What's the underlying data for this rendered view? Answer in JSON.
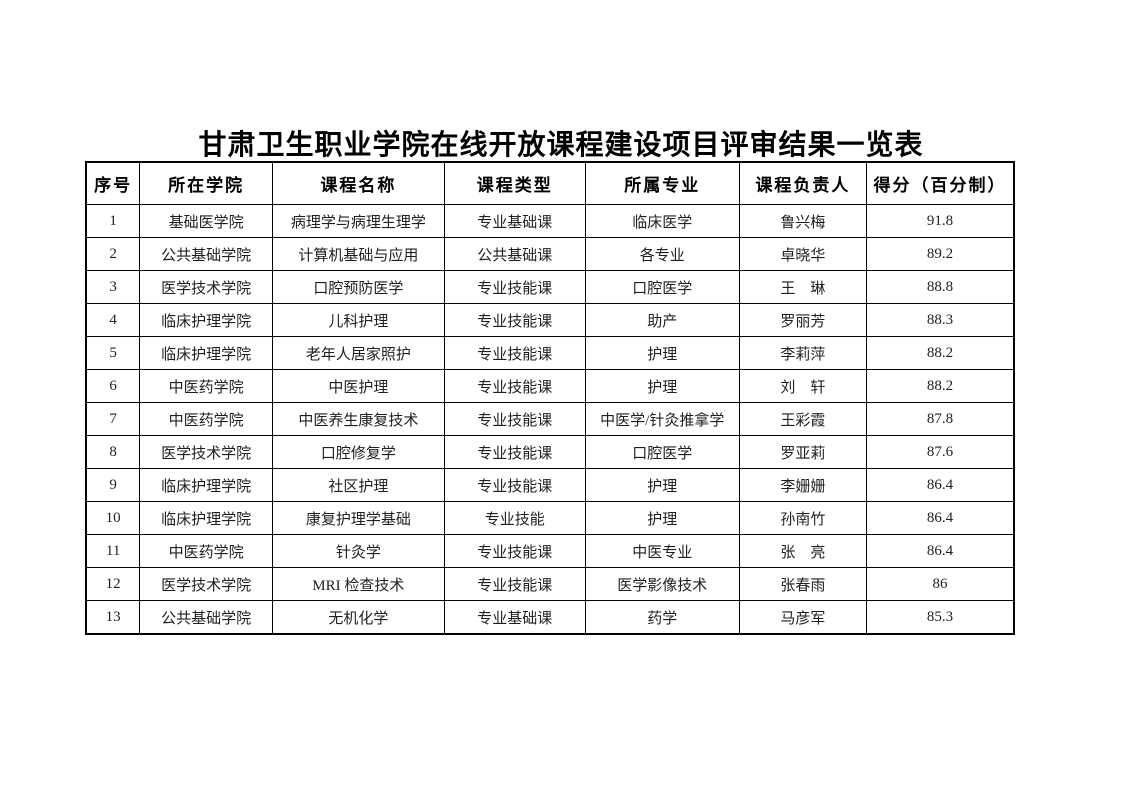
{
  "title": "甘肃卫生职业学院在线开放课程建设项目评审结果一览表",
  "table": {
    "headers": [
      "序号",
      "所在学院",
      "课程名称",
      "课程类型",
      "所属专业",
      "课程负责人",
      "得分（百分制）"
    ],
    "rows": [
      [
        "1",
        "基础医学院",
        "病理学与病理生理学",
        "专业基础课",
        "临床医学",
        "鲁兴梅",
        "91.8"
      ],
      [
        "2",
        "公共基础学院",
        "计算机基础与应用",
        "公共基础课",
        "各专业",
        "卓晓华",
        "89.2"
      ],
      [
        "3",
        "医学技术学院",
        "口腔预防医学",
        "专业技能课",
        "口腔医学",
        "王　琳",
        "88.8"
      ],
      [
        "4",
        "临床护理学院",
        "儿科护理",
        "专业技能课",
        "助产",
        "罗丽芳",
        "88.3"
      ],
      [
        "5",
        "临床护理学院",
        "老年人居家照护",
        "专业技能课",
        "护理",
        "李莉萍",
        "88.2"
      ],
      [
        "6",
        "中医药学院",
        "中医护理",
        "专业技能课",
        "护理",
        "刘　轩",
        "88.2"
      ],
      [
        "7",
        "中医药学院",
        "中医养生康复技术",
        "专业技能课",
        "中医学/针灸推拿学",
        "王彩霞",
        "87.8"
      ],
      [
        "8",
        "医学技术学院",
        "口腔修复学",
        "专业技能课",
        "口腔医学",
        "罗亚莉",
        "87.6"
      ],
      [
        "9",
        "临床护理学院",
        "社区护理",
        "专业技能课",
        "护理",
        "李姗姗",
        "86.4"
      ],
      [
        "10",
        "临床护理学院",
        "康复护理学基础",
        "专业技能",
        "护理",
        "孙南竹",
        "86.4"
      ],
      [
        "11",
        "中医药学院",
        "针灸学",
        "专业技能课",
        "中医专业",
        "张　亮",
        "86.4"
      ],
      [
        "12",
        "医学技术学院",
        "MRI 检查技术",
        "专业技能课",
        "医学影像技术",
        "张春雨",
        "86"
      ],
      [
        "13",
        "公共基础学院",
        "无机化学",
        "专业基础课",
        "药学",
        "马彦军",
        "85.3"
      ]
    ]
  }
}
